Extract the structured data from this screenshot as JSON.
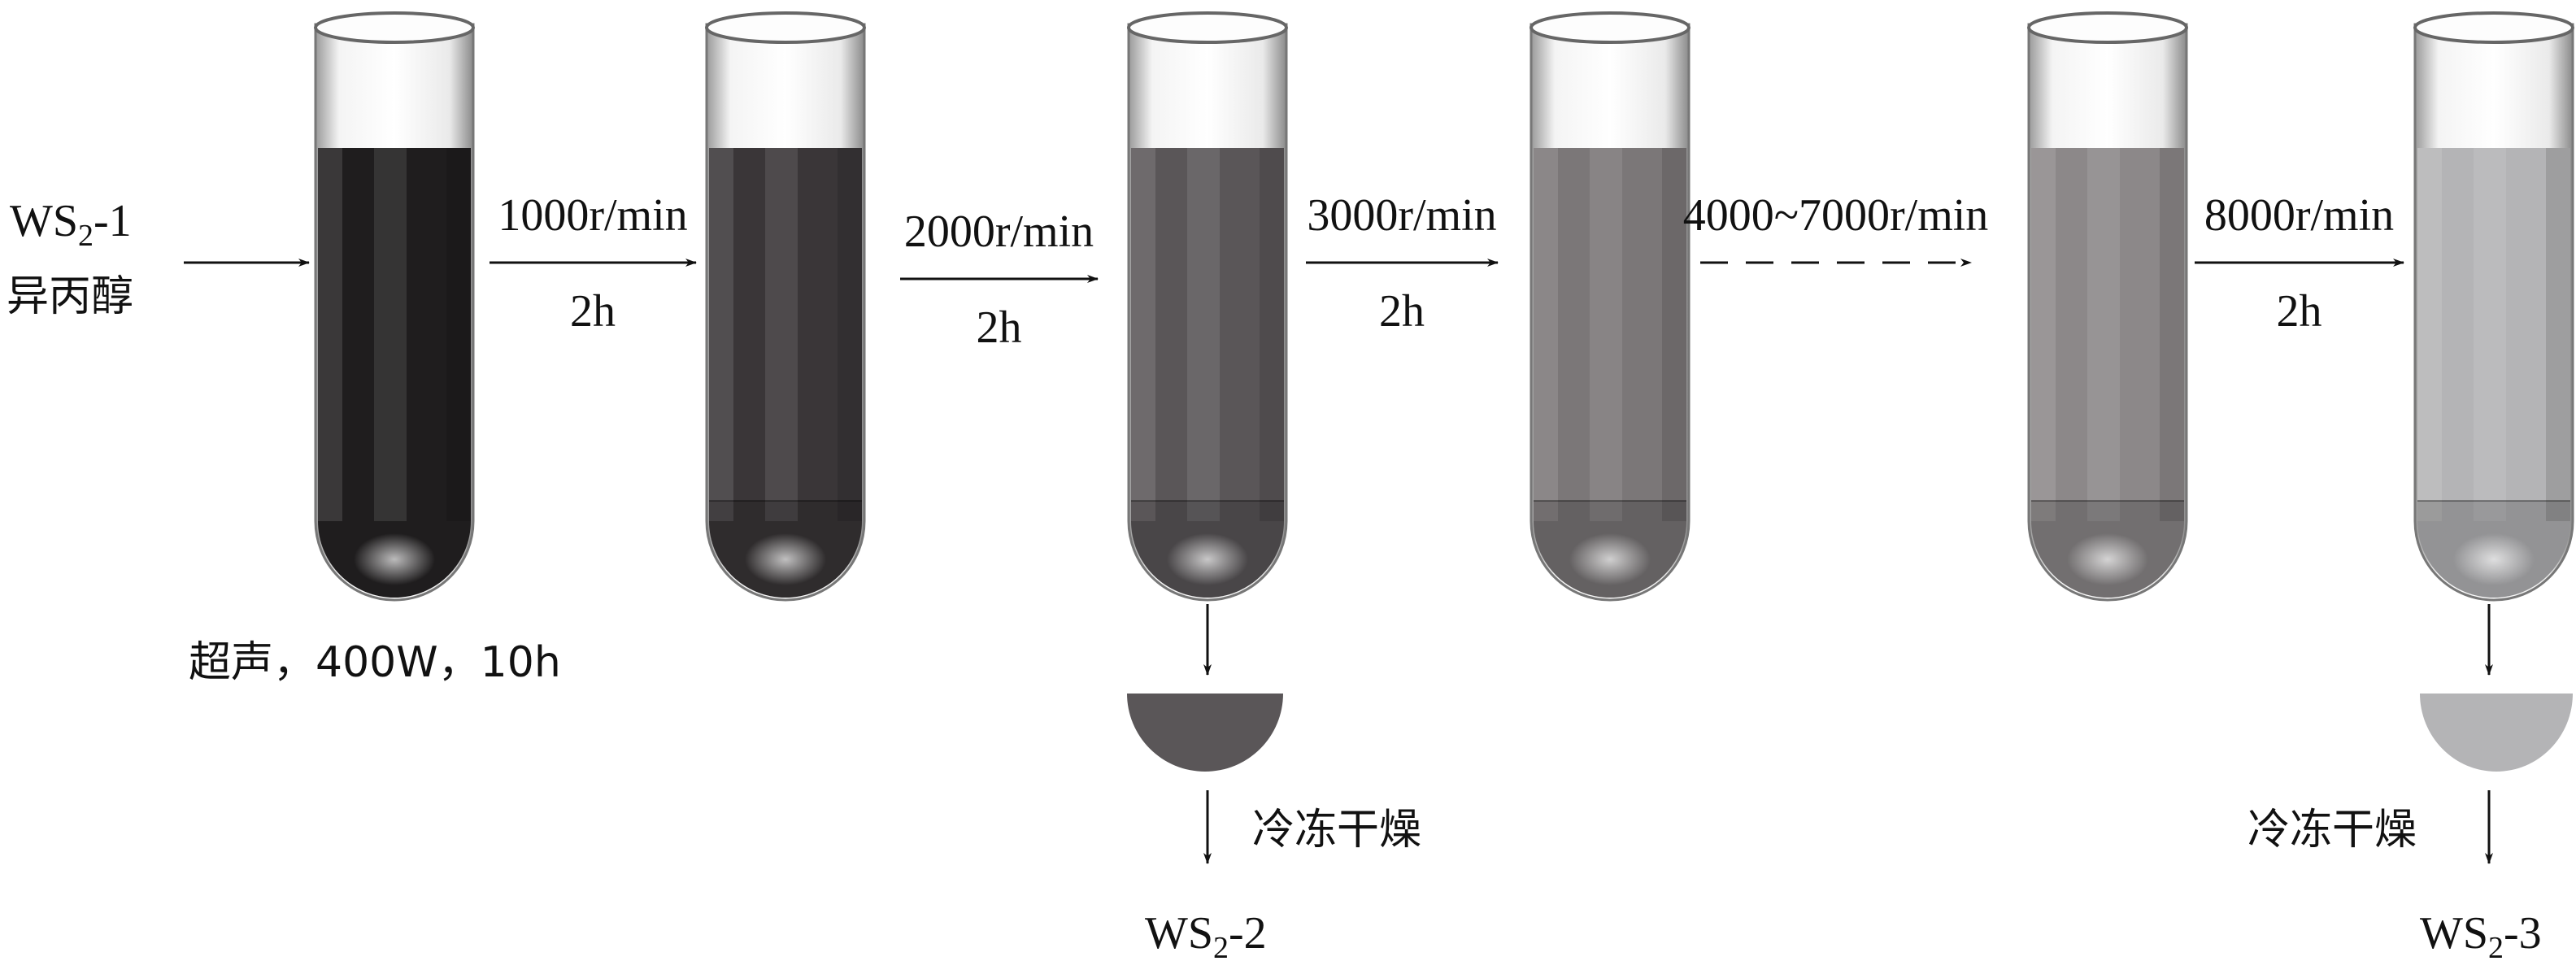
{
  "input": {
    "formula": "WS",
    "subscript": "2",
    "suffix": "-1",
    "solvent": "异丙醇"
  },
  "sonication": "超声，400W，10h",
  "steps": [
    {
      "speed": "1000r/min",
      "time": "2h",
      "dashed": false
    },
    {
      "speed": "2000r/min",
      "time": "2h",
      "dashed": false
    },
    {
      "speed": "3000r/min",
      "time": "2h",
      "dashed": false
    },
    {
      "speed": "4000~7000r/min",
      "time": "",
      "dashed": true
    },
    {
      "speed": "8000r/min",
      "time": "2h",
      "dashed": false
    }
  ],
  "tube_colors": [
    "#1f1d1e",
    "#3a3638",
    "#5a5658",
    "#7b7778",
    "#8c8889",
    "#b4b4b6"
  ],
  "outputs": [
    {
      "process": "冷冻干燥",
      "formula": "WS",
      "subscript": "2",
      "suffix": "-2"
    },
    {
      "process": "冷冻干燥",
      "formula": "WS",
      "subscript": "2",
      "suffix": "-3"
    }
  ]
}
